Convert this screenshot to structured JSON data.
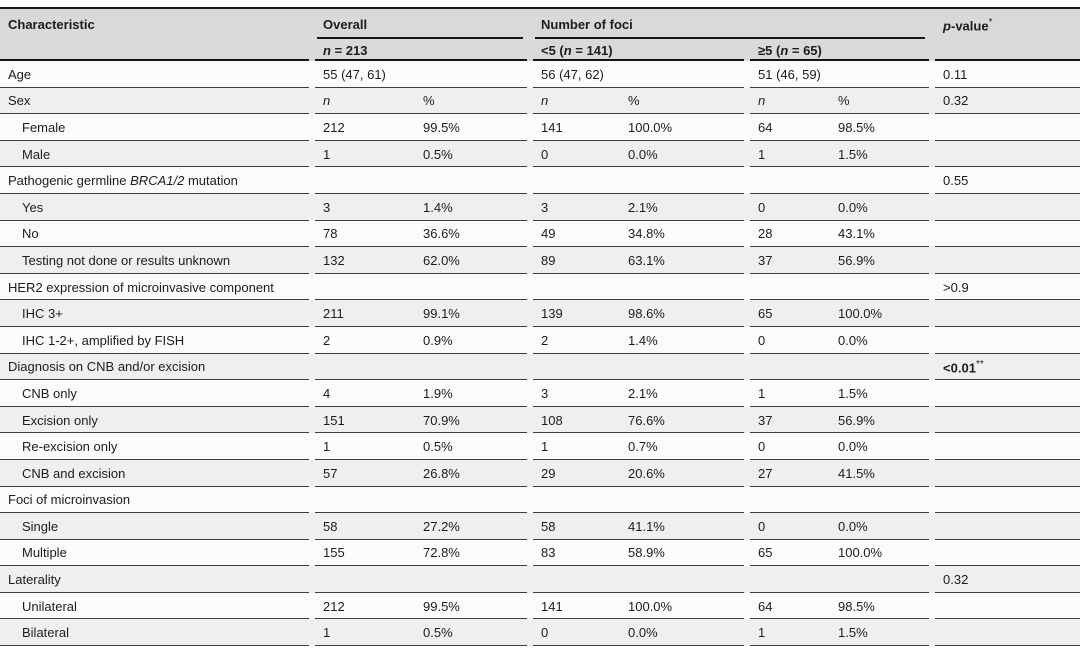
{
  "table": {
    "columns": {
      "characteristic": "Characteristic",
      "overall_group": "Overall",
      "overall_sub_parts": [
        {
          "t": "n",
          "i": true
        },
        {
          "t": " = 213"
        }
      ],
      "foci_group": "Number of foci",
      "foci_lt5_parts": [
        {
          "t": "<5 ("
        },
        {
          "t": "n",
          "i": true
        },
        {
          "t": " = 141)"
        }
      ],
      "foci_ge5_parts": [
        {
          "t": "≥5 ("
        },
        {
          "t": "n",
          "i": true
        },
        {
          "t": " = 65)"
        }
      ],
      "pvalue_parts": [
        {
          "t": "p",
          "i": true
        },
        {
          "t": "-value"
        },
        {
          "t": "*",
          "sup": true
        }
      ]
    },
    "rows": [
      {
        "label": "Age",
        "indent": false,
        "values": [
          "55 (47, 61)",
          "",
          "56 (47, 62)",
          "",
          "51 (46, 59)",
          ""
        ],
        "p": "0.11"
      },
      {
        "label": "Sex",
        "indent": false,
        "values": [
          [
            {
              "t": "n",
              "i": true
            }
          ],
          "%",
          [
            {
              "t": "n",
              "i": true
            }
          ],
          "%",
          [
            {
              "t": "n",
              "i": true
            }
          ],
          "%"
        ],
        "p": "0.32"
      },
      {
        "label": "Female",
        "indent": true,
        "values": [
          "212",
          "99.5%",
          "141",
          "100.0%",
          "64",
          "98.5%"
        ],
        "p": ""
      },
      {
        "label": "Male",
        "indent": true,
        "values": [
          "1",
          "0.5%",
          "0",
          "0.0%",
          "1",
          "1.5%"
        ],
        "p": ""
      },
      {
        "label": [
          {
            "t": "Pathogenic germline "
          },
          {
            "t": "BRCA1/2",
            "i": true
          },
          {
            "t": " mutation"
          }
        ],
        "indent": false,
        "values": [
          "",
          "",
          "",
          "",
          "",
          ""
        ],
        "p": "0.55"
      },
      {
        "label": "Yes",
        "indent": true,
        "values": [
          "3",
          "1.4%",
          "3",
          "2.1%",
          "0",
          "0.0%"
        ],
        "p": ""
      },
      {
        "label": "No",
        "indent": true,
        "values": [
          "78",
          "36.6%",
          "49",
          "34.8%",
          "28",
          "43.1%"
        ],
        "p": ""
      },
      {
        "label": "Testing not done or results unknown",
        "indent": true,
        "values": [
          "132",
          "62.0%",
          "89",
          "63.1%",
          "37",
          "56.9%"
        ],
        "p": ""
      },
      {
        "label": "HER2 expression of microinvasive component",
        "indent": false,
        "values": [
          "",
          "",
          "",
          "",
          "",
          ""
        ],
        "p": ">0.9"
      },
      {
        "label": "IHC 3+",
        "indent": true,
        "values": [
          "211",
          "99.1%",
          "139",
          "98.6%",
          "65",
          "100.0%"
        ],
        "p": ""
      },
      {
        "label": "IHC 1-2+, amplified by FISH",
        "indent": true,
        "values": [
          "2",
          "0.9%",
          "2",
          "1.4%",
          "0",
          "0.0%"
        ],
        "p": ""
      },
      {
        "label": "Diagnosis on CNB and/or excision",
        "indent": false,
        "values": [
          "",
          "",
          "",
          "",
          "",
          ""
        ],
        "p": [
          {
            "t": "<0.01",
            "b": true
          },
          {
            "t": "**",
            "sup": true
          }
        ]
      },
      {
        "label": "CNB only",
        "indent": true,
        "values": [
          "4",
          "1.9%",
          "3",
          "2.1%",
          "1",
          "1.5%"
        ],
        "p": ""
      },
      {
        "label": "Excision only",
        "indent": true,
        "values": [
          "151",
          "70.9%",
          "108",
          "76.6%",
          "37",
          "56.9%"
        ],
        "p": ""
      },
      {
        "label": "Re-excision only",
        "indent": true,
        "values": [
          "1",
          "0.5%",
          "1",
          "0.7%",
          "0",
          "0.0%"
        ],
        "p": ""
      },
      {
        "label": "CNB and excision",
        "indent": true,
        "values": [
          "57",
          "26.8%",
          "29",
          "20.6%",
          "27",
          "41.5%"
        ],
        "p": ""
      },
      {
        "label": "Foci of microinvasion",
        "indent": false,
        "values": [
          "",
          "",
          "",
          "",
          "",
          ""
        ],
        "p": ""
      },
      {
        "label": "Single",
        "indent": true,
        "values": [
          "58",
          "27.2%",
          "58",
          "41.1%",
          "0",
          "0.0%"
        ],
        "p": ""
      },
      {
        "label": "Multiple",
        "indent": true,
        "values": [
          "155",
          "72.8%",
          "83",
          "58.9%",
          "65",
          "100.0%"
        ],
        "p": ""
      },
      {
        "label": "Laterality",
        "indent": false,
        "values": [
          "",
          "",
          "",
          "",
          "",
          ""
        ],
        "p": "0.32"
      },
      {
        "label": "Unilateral",
        "indent": true,
        "values": [
          "212",
          "99.5%",
          "141",
          "100.0%",
          "64",
          "98.5%"
        ],
        "p": ""
      },
      {
        "label": "Bilateral",
        "indent": true,
        "values": [
          "1",
          "0.5%",
          "0",
          "0.0%",
          "1",
          "1.5%"
        ],
        "p": ""
      }
    ]
  },
  "colors": {
    "header_bg": "#d9d9d9",
    "stripe_bg": "#efefef",
    "row_bg": "#fbfbfb",
    "rule_dark": "#161616",
    "rule_light": "#3e3e3e",
    "text": "#1c1c1c"
  }
}
